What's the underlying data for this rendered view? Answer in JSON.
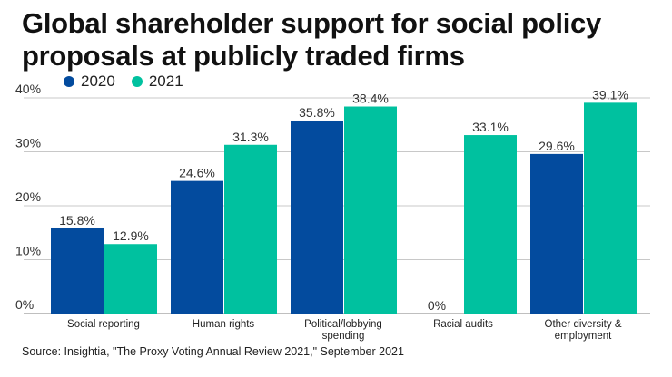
{
  "title": "Global shareholder support for social policy proposals at publicly traded firms",
  "source": "Source: Insightia, \"The Proxy Voting Annual Review 2021,\" September 2021",
  "colors": {
    "2020": "#034b9e",
    "2021": "#00c19f",
    "grid": "#c8c8c8"
  },
  "chart_data": {
    "type": "bar",
    "title": "Global shareholder support for social policy proposals at publicly traded firms",
    "xlabel": "",
    "ylabel": "",
    "ylim": [
      0,
      40
    ],
    "yticks": [
      "0%",
      "10%",
      "20%",
      "30%",
      "40%"
    ],
    "grid": true,
    "legend_position": "top-left",
    "categories": [
      [
        "Social reporting"
      ],
      [
        "Human rights"
      ],
      [
        "Political/lobbying",
        "spending"
      ],
      [
        "Racial audits"
      ],
      [
        "Other diversity &",
        "employment"
      ]
    ],
    "series": [
      {
        "name": "2020",
        "values": [
          15.8,
          24.6,
          35.8,
          0,
          29.6
        ],
        "labels": [
          "15.8%",
          "24.6%",
          "35.8%",
          "0%",
          "29.6%"
        ]
      },
      {
        "name": "2021",
        "values": [
          12.9,
          31.3,
          38.4,
          33.1,
          39.1
        ],
        "labels": [
          "12.9%",
          "31.3%",
          "38.4%",
          "33.1%",
          "39.1%"
        ]
      }
    ]
  }
}
